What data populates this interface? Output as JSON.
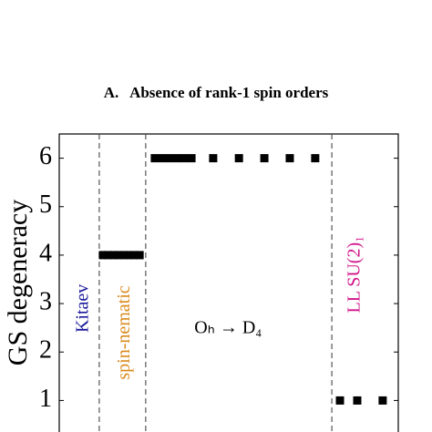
{
  "section_heading": "A.   Absence of rank-1 spin orders",
  "chart_data": {
    "type": "scatter",
    "y_label": "GS degeneracy",
    "xlim": [
      0,
      10
    ],
    "ylim": [
      0.5,
      6.5
    ],
    "yticks": [
      1,
      2,
      3,
      4,
      5,
      6
    ],
    "vlines": [
      1.18,
      2.55,
      8.04
    ],
    "series": [
      {
        "color": "#000000",
        "x": [
          1.29,
          1.44,
          1.6,
          1.75,
          1.9,
          2.05,
          2.2,
          2.37,
          2.82,
          3.04,
          3.25,
          3.47,
          3.68,
          3.9,
          4.54,
          5.3,
          6.05,
          6.8,
          7.55,
          8.28,
          8.79,
          9.54
        ],
        "values": [
          4,
          4,
          4,
          4,
          4,
          4,
          4,
          4,
          6,
          6,
          6,
          6,
          6,
          6,
          6,
          6,
          6,
          6,
          6,
          1,
          1,
          1
        ]
      }
    ],
    "annotations": [
      {
        "text": "Kitaev",
        "color": "#1a1a9c",
        "x": 0.72,
        "y": 2.9,
        "rotate": true
      },
      {
        "text": "spin-nematic",
        "color": "#d9891a",
        "x": 1.95,
        "y": 2.4,
        "rotate": true
      },
      {
        "text": "LL SU(2)₁",
        "color": "#d1168a",
        "x": 8.74,
        "y": 3.6,
        "rotate": true
      },
      {
        "text": "Oₕ → D₄",
        "color": "#000000",
        "x": 4.98,
        "y": 2.48,
        "rotate": false
      }
    ]
  }
}
